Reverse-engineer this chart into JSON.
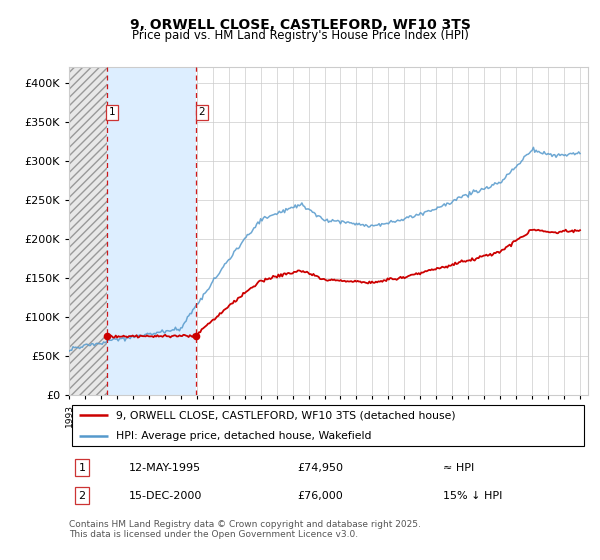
{
  "title": "9, ORWELL CLOSE, CASTLEFORD, WF10 3TS",
  "subtitle": "Price paid vs. HM Land Registry's House Price Index (HPI)",
  "legend_line1": "9, ORWELL CLOSE, CASTLEFORD, WF10 3TS (detached house)",
  "legend_line2": "HPI: Average price, detached house, Wakefield",
  "transaction1_date": "12-MAY-1995",
  "transaction1_price": "£74,950",
  "transaction1_hpi": "≈ HPI",
  "transaction2_date": "15-DEC-2000",
  "transaction2_price": "£76,000",
  "transaction2_hpi": "15% ↓ HPI",
  "footer": "Contains HM Land Registry data © Crown copyright and database right 2025.\nThis data is licensed under the Open Government Licence v3.0.",
  "price_color": "#cc0000",
  "hpi_color": "#5599cc",
  "ylim": [
    0,
    420000
  ],
  "yticks": [
    0,
    50000,
    100000,
    150000,
    200000,
    250000,
    300000,
    350000,
    400000
  ],
  "transaction1_x": 1995.36,
  "transaction1_y": 74950,
  "transaction2_x": 2000.96,
  "transaction2_y": 76000,
  "xmin": 1993,
  "xmax": 2025.5
}
